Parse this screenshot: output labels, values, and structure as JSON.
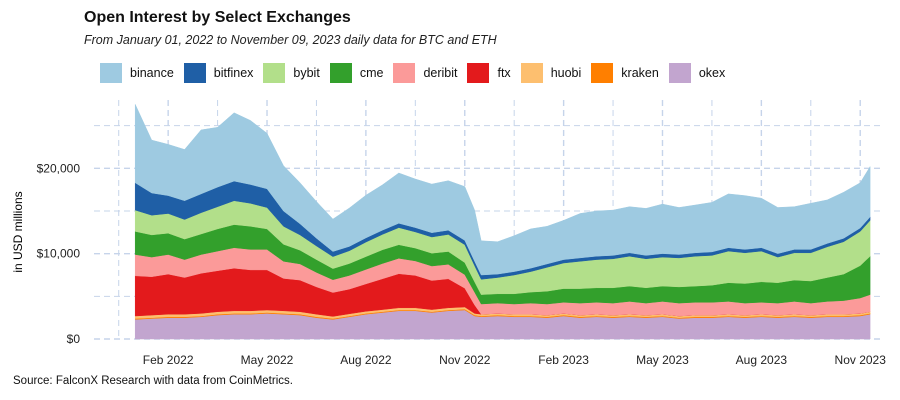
{
  "chart_data": {
    "type": "area",
    "stacked": true,
    "title": "Open Interest by Select Exchanges",
    "subtitle": "From January 01, 2022 to November 09, 2023 daily data for BTC and ETH",
    "ylabel": "in USD millions",
    "xlabel": "",
    "caption": "Source: FalconX Research with data from CoinMetrics.",
    "ylim": [
      0,
      28000
    ],
    "xlim_month_index": [
      -1.25,
      22.6
    ],
    "yticks": [
      {
        "value": 0,
        "label": "$0"
      },
      {
        "value": 10000,
        "label": "$10,000"
      },
      {
        "value": 20000,
        "label": "$20,000"
      }
    ],
    "xticks": [
      {
        "value": 1,
        "label": "Feb 2022"
      },
      {
        "value": 4,
        "label": "May 2022"
      },
      {
        "value": 7,
        "label": "Aug 2022"
      },
      {
        "value": 10,
        "label": "Nov 2022"
      },
      {
        "value": 13,
        "label": "Feb 2023"
      },
      {
        "value": 16,
        "label": "May 2023"
      },
      {
        "value": 19,
        "label": "Aug 2023"
      },
      {
        "value": 22,
        "label": "Nov 2023"
      }
    ],
    "x": [
      0,
      0.5,
      1,
      1.5,
      2,
      2.5,
      3,
      3.5,
      4,
      4.5,
      5,
      5.5,
      6,
      6.5,
      7,
      7.5,
      8,
      8.5,
      9,
      9.5,
      10,
      10.3,
      10.5,
      11,
      11.5,
      12,
      12.5,
      13,
      13.5,
      14,
      14.5,
      15,
      15.5,
      16,
      16.5,
      17,
      17.5,
      18,
      18.5,
      19,
      19.5,
      20,
      20.5,
      21,
      21.5,
      22,
      22.3
    ],
    "series": [
      {
        "name": "okex",
        "color": "#c2a5cf",
        "values": [
          2300,
          2400,
          2500,
          2500,
          2600,
          2800,
          2900,
          2900,
          3000,
          2900,
          2800,
          2500,
          2300,
          2600,
          2900,
          3100,
          3300,
          3300,
          3100,
          3300,
          3400,
          2700,
          2600,
          2700,
          2600,
          2600,
          2500,
          2700,
          2500,
          2600,
          2500,
          2600,
          2500,
          2600,
          2400,
          2500,
          2500,
          2600,
          2500,
          2600,
          2500,
          2600,
          2500,
          2600,
          2600,
          2700,
          2900
        ]
      },
      {
        "name": "kraken",
        "color": "#ff7f00",
        "values": [
          100,
          100,
          100,
          100,
          100,
          100,
          100,
          100,
          100,
          100,
          100,
          100,
          100,
          100,
          100,
          100,
          100,
          100,
          100,
          100,
          100,
          100,
          100,
          100,
          100,
          100,
          100,
          100,
          100,
          100,
          100,
          100,
          100,
          100,
          100,
          100,
          100,
          100,
          100,
          100,
          100,
          100,
          100,
          100,
          100,
          100,
          100
        ]
      },
      {
        "name": "huobi",
        "color": "#fdbf6f",
        "values": [
          300,
          300,
          300,
          300,
          300,
          300,
          300,
          300,
          300,
          300,
          300,
          300,
          250,
          250,
          250,
          250,
          250,
          250,
          250,
          250,
          250,
          200,
          200,
          200,
          200,
          200,
          200,
          200,
          200,
          200,
          200,
          200,
          200,
          200,
          200,
          200,
          200,
          200,
          200,
          200,
          200,
          200,
          200,
          200,
          200,
          200,
          200
        ]
      },
      {
        "name": "ftx",
        "color": "#e31a1c",
        "values": [
          4700,
          4500,
          4700,
          4300,
          4700,
          4800,
          5000,
          4800,
          4700,
          3800,
          3700,
          3200,
          2800,
          2900,
          3200,
          3600,
          4000,
          3800,
          3400,
          3400,
          2200,
          1000,
          0,
          0,
          0,
          0,
          0,
          0,
          0,
          0,
          0,
          0,
          0,
          0,
          0,
          0,
          0,
          0,
          0,
          0,
          0,
          0,
          0,
          0,
          0,
          0,
          0
        ]
      },
      {
        "name": "deribit",
        "color": "#fb9a99",
        "values": [
          2500,
          2300,
          2300,
          2100,
          2200,
          2300,
          2400,
          2400,
          2400,
          2000,
          1900,
          1700,
          1500,
          1600,
          1700,
          1800,
          1800,
          1700,
          1700,
          1700,
          1600,
          1500,
          1200,
          1200,
          1200,
          1300,
          1300,
          1300,
          1400,
          1400,
          1400,
          1500,
          1400,
          1500,
          1500,
          1500,
          1500,
          1500,
          1400,
          1400,
          1400,
          1500,
          1400,
          1500,
          1600,
          1800,
          2000
        ]
      },
      {
        "name": "cme",
        "color": "#33a02c",
        "values": [
          2700,
          2600,
          2500,
          2400,
          2400,
          2600,
          2700,
          2700,
          2400,
          2000,
          1600,
          1500,
          1300,
          1400,
          1500,
          1600,
          1600,
          1500,
          1500,
          1500,
          1400,
          1200,
          1100,
          1100,
          1200,
          1300,
          1500,
          1600,
          1700,
          1700,
          1800,
          1800,
          1800,
          1800,
          1900,
          1900,
          2000,
          2200,
          2300,
          2400,
          2400,
          2500,
          2600,
          2800,
          3100,
          3800,
          4500
        ]
      },
      {
        "name": "bybit",
        "color": "#b2df8a",
        "values": [
          2500,
          2300,
          2300,
          2300,
          2500,
          2600,
          2800,
          2700,
          2500,
          2100,
          1800,
          1600,
          1400,
          1500,
          1700,
          1800,
          2000,
          1900,
          1900,
          2000,
          2100,
          1900,
          1800,
          1900,
          2200,
          2400,
          2800,
          3000,
          3200,
          3300,
          3400,
          3500,
          3400,
          3400,
          3400,
          3500,
          3500,
          3700,
          3600,
          3600,
          3000,
          3200,
          3300,
          3600,
          3800,
          4000,
          4200
        ]
      },
      {
        "name": "bitfinex",
        "color": "#1f5fa6",
        "values": [
          3200,
          2600,
          2100,
          2200,
          2200,
          2300,
          2300,
          2200,
          2200,
          1800,
          1300,
          900,
          600,
          500,
          500,
          500,
          500,
          500,
          500,
          500,
          500,
          500,
          500,
          400,
          400,
          400,
          400,
          400,
          400,
          400,
          400,
          400,
          400,
          400,
          400,
          400,
          400,
          400,
          400,
          400,
          400,
          400,
          400,
          400,
          400,
          400,
          400
        ]
      },
      {
        "name": "binance",
        "color": "#9ecae1",
        "values": [
          9200,
          6200,
          6000,
          6000,
          7500,
          7000,
          8000,
          7500,
          6500,
          5300,
          4800,
          4300,
          3800,
          4500,
          5000,
          5300,
          5900,
          5700,
          5700,
          5800,
          6300,
          6000,
          4000,
          3800,
          4200,
          4600,
          4400,
          4600,
          5200,
          5300,
          5300,
          5400,
          5500,
          5800,
          5500,
          5600,
          5800,
          6300,
          6300,
          5800,
          5400,
          5000,
          5400,
          5100,
          5400,
          5300,
          5900
        ]
      }
    ]
  }
}
